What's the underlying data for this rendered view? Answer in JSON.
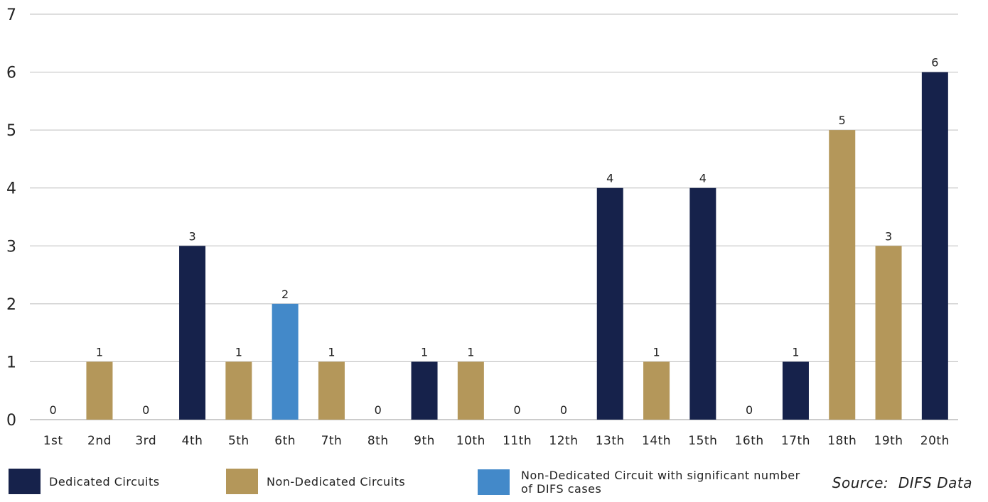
{
  "chart_data": {
    "type": "bar",
    "title": "",
    "xlabel": "",
    "ylabel": "",
    "ylim": [
      0,
      7
    ],
    "yticks": [
      0,
      1,
      2,
      3,
      4,
      5,
      6,
      7
    ],
    "grid": true,
    "categories": [
      "1st",
      "2nd",
      "3rd",
      "4th",
      "5th",
      "6th",
      "7th",
      "8th",
      "9th",
      "10th",
      "11th",
      "12th",
      "13th",
      "14th",
      "15th",
      "16th",
      "17th",
      "18th",
      "19th",
      "20th"
    ],
    "values": [
      0,
      1,
      0,
      3,
      1,
      2,
      1,
      0,
      1,
      1,
      0,
      0,
      4,
      1,
      4,
      0,
      1,
      5,
      3,
      6
    ],
    "bar_group": [
      "dedicated",
      "non_dedicated",
      "dedicated",
      "dedicated",
      "non_dedicated",
      "significant",
      "non_dedicated",
      "dedicated",
      "dedicated",
      "non_dedicated",
      "dedicated",
      "dedicated",
      "dedicated",
      "non_dedicated",
      "dedicated",
      "dedicated",
      "dedicated",
      "non_dedicated",
      "non_dedicated",
      "dedicated"
    ],
    "legend": [
      {
        "key": "dedicated",
        "label": "Dedicated Circuits",
        "color": "#16224b"
      },
      {
        "key": "non_dedicated",
        "label": "Non-Dedicated Circuits",
        "color": "#b4975a"
      },
      {
        "key": "significant",
        "label": "Non-Dedicated Circuit with significant number of DIFS cases",
        "color": "#4389c9"
      }
    ],
    "legend_position": "bottom",
    "source": "Source:  DIFS Data"
  }
}
